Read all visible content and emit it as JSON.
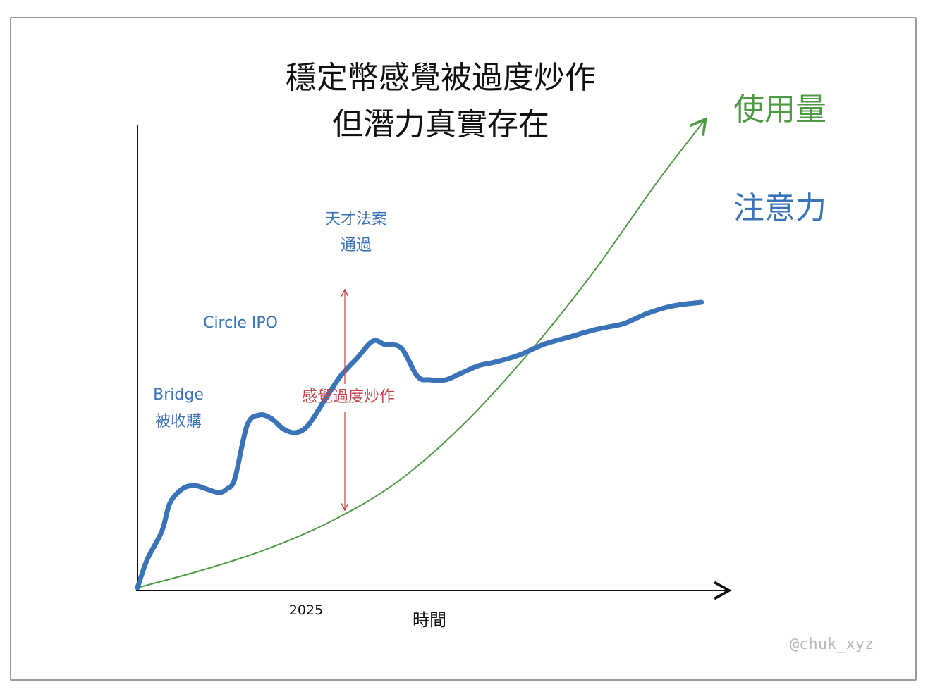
{
  "title_lines": [
    "穩定幣感覺被過度炒作",
    "但潛力真實存在"
  ],
  "watermark": "@chuk_xyz",
  "colors": {
    "attention": "#3b73b9",
    "usage": "#4f9a45",
    "hype": "#c0454a",
    "axis": "#111111"
  },
  "chart_data": {
    "type": "line",
    "title": "穩定幣感覺被過度炒作 但潛力真實存在",
    "xlabel": "時間",
    "ylabel": "",
    "x_ticks": [
      "2025"
    ],
    "series": [
      {
        "name": "注意力",
        "color": "#3b73b9",
        "points": [
          [
            0,
            0
          ],
          [
            0.12,
            8
          ],
          [
            0.3,
            16
          ],
          [
            0.4,
            24
          ],
          [
            0.55,
            28
          ],
          [
            0.7,
            29
          ],
          [
            0.85,
            28
          ],
          [
            1.0,
            27
          ],
          [
            1.1,
            28
          ],
          [
            1.2,
            31
          ],
          [
            1.35,
            46
          ],
          [
            1.5,
            49
          ],
          [
            1.65,
            48
          ],
          [
            1.8,
            45
          ],
          [
            1.95,
            44
          ],
          [
            2.1,
            46
          ],
          [
            2.3,
            53
          ],
          [
            2.5,
            60
          ],
          [
            2.7,
            65
          ],
          [
            2.9,
            70
          ],
          [
            3.05,
            69
          ],
          [
            3.25,
            68
          ],
          [
            3.45,
            60
          ],
          [
            3.6,
            59
          ],
          [
            3.8,
            59
          ],
          [
            4.0,
            61
          ],
          [
            4.2,
            63
          ],
          [
            4.4,
            64
          ],
          [
            4.7,
            66
          ],
          [
            5.0,
            69
          ],
          [
            5.3,
            71
          ],
          [
            5.6,
            73
          ],
          [
            5.8,
            74
          ],
          [
            6.0,
            75
          ],
          [
            6.3,
            78
          ],
          [
            6.6,
            80
          ],
          [
            6.95,
            81
          ]
        ]
      },
      {
        "name": "使用量",
        "color": "#4f9a45",
        "points": [
          [
            0,
            0
          ],
          [
            0.8,
            5
          ],
          [
            1.6,
            11
          ],
          [
            2.4,
            19
          ],
          [
            3.2,
            30
          ],
          [
            4.0,
            46
          ],
          [
            4.8,
            66
          ],
          [
            5.6,
            89
          ],
          [
            6.4,
            115
          ],
          [
            7.0,
            133
          ]
        ]
      }
    ],
    "annotations": [
      {
        "text_lines": [
          "Bridge",
          "被收購"
        ],
        "x": 0.4
      },
      {
        "text_lines": [
          "Circle IPO"
        ],
        "x": 1.35
      },
      {
        "text_lines": [
          "天才法案",
          "通過"
        ],
        "x": 2.9
      },
      {
        "text_lines": [
          "感覺過度炒作"
        ],
        "x": 2.7,
        "between": [
          "使用量",
          "注意力"
        ]
      }
    ],
    "xlim": [
      0,
      7.3
    ],
    "ylim": [
      0,
      130
    ],
    "grid": false,
    "legend": "series labels at right end of lines"
  }
}
